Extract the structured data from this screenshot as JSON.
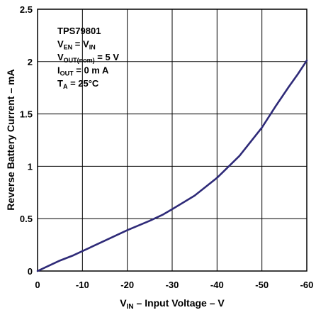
{
  "chart_data": {
    "type": "line",
    "xlabel": {
      "main": "V",
      "sub": "IN",
      "rest": " – Input Voltage – V"
    },
    "ylabel": "Reverse Battery Current – mA",
    "xlim": [
      0,
      -60
    ],
    "ylim": [
      0,
      2.5
    ],
    "x_ticks": [
      0,
      -10,
      -20,
      -30,
      -40,
      -50,
      -60
    ],
    "x_tick_labels": [
      "0",
      "-10",
      "-20",
      "-30",
      "-40",
      "-50",
      "-60"
    ],
    "y_ticks": [
      0,
      0.5,
      1,
      1.5,
      2,
      2.5
    ],
    "y_tick_labels": [
      "0",
      "0.5",
      "1",
      "1.5",
      "2",
      "2.5"
    ],
    "grid": true,
    "series": [
      {
        "color": "#2e2a78",
        "x": [
          0,
          -2,
          -5,
          -8,
          -10,
          -15,
          -20,
          -25,
          -28,
          -30,
          -35,
          -40,
          -45,
          -50,
          -53,
          -56,
          -58,
          -60
        ],
        "y": [
          0,
          0.04,
          0.1,
          0.15,
          0.19,
          0.29,
          0.39,
          0.48,
          0.54,
          0.59,
          0.72,
          0.89,
          1.1,
          1.37,
          1.57,
          1.76,
          1.88,
          2.01
        ]
      }
    ],
    "annotations": [
      [
        {
          "t": "TPS79801"
        }
      ],
      [
        {
          "t": "V"
        },
        {
          "t": "EN",
          "sub": true
        },
        {
          "t": " = V"
        },
        {
          "t": "IN",
          "sub": true
        }
      ],
      [
        {
          "t": "V"
        },
        {
          "t": "OUT(nom)",
          "sub": true
        },
        {
          "t": " = 5 V"
        }
      ],
      [
        {
          "t": "I"
        },
        {
          "t": "OUT",
          "sub": true
        },
        {
          "t": " = 0 m A"
        }
      ],
      [
        {
          "t": "T"
        },
        {
          "t": "A",
          "sub": true
        },
        {
          "t": " = 25°C"
        }
      ]
    ]
  }
}
